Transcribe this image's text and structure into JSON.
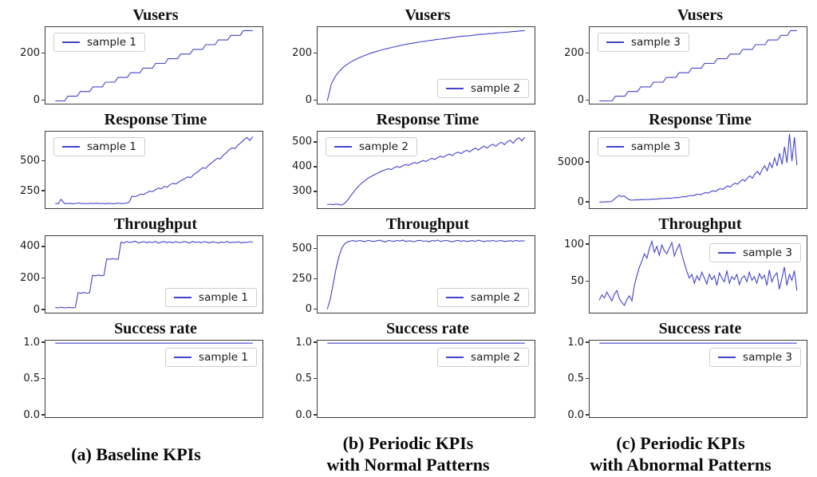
{
  "figure": {
    "line_color": "#4343cd",
    "axis_color": "#3c3c3c",
    "captions": [
      {
        "line1": "(a) Baseline KPIs",
        "line2": ""
      },
      {
        "line1": "(b) Periodic KPIs",
        "line2": "with Normal Patterns"
      },
      {
        "line1": "(c) Periodic KPIs",
        "line2": "with Abnormal Patterns"
      }
    ]
  },
  "chart_data": [
    {
      "type": "line",
      "title": "Vusers",
      "xlabel": "",
      "ylabel": "",
      "legend": {
        "position": "upper-left"
      },
      "yticks": [
        {
          "label": "0",
          "value": 0
        },
        {
          "label": "200",
          "value": 200
        }
      ],
      "ylim": [
        -12,
        315
      ],
      "series": [
        {
          "name": "sample 1",
          "values": [
            0,
            0,
            0,
            0,
            20,
            20,
            20,
            20,
            40,
            40,
            40,
            40,
            60,
            60,
            60,
            60,
            80,
            80,
            80,
            80,
            100,
            100,
            100,
            100,
            120,
            120,
            120,
            120,
            140,
            140,
            140,
            140,
            160,
            160,
            160,
            160,
            180,
            180,
            180,
            180,
            200,
            200,
            200,
            200,
            220,
            220,
            220,
            220,
            240,
            240,
            240,
            240,
            260,
            260,
            260,
            260,
            280,
            280,
            280,
            280,
            300,
            300,
            300,
            300
          ]
        }
      ]
    },
    {
      "type": "line",
      "title": "Vusers",
      "xlabel": "",
      "ylabel": "",
      "legend": {
        "position": "lower-right"
      },
      "yticks": [
        {
          "label": "0",
          "value": 0
        },
        {
          "label": "200",
          "value": 200
        }
      ],
      "ylim": [
        -12,
        315
      ],
      "series": [
        {
          "name": "sample 2",
          "values": [
            0,
            72,
            105,
            127,
            144,
            157,
            168,
            177,
            185,
            192,
            199,
            205,
            210,
            215,
            220,
            224,
            228,
            232,
            236,
            240,
            243,
            246,
            249,
            252,
            254,
            257,
            259,
            262,
            264,
            266,
            268,
            271,
            273,
            275,
            277,
            278,
            280,
            282,
            284,
            285,
            287,
            288,
            290,
            291,
            293,
            294,
            296,
            297,
            299,
            300
          ]
        }
      ]
    },
    {
      "type": "line",
      "title": "Vusers",
      "xlabel": "",
      "ylabel": "",
      "legend": {
        "position": "upper-left"
      },
      "yticks": [
        {
          "label": "0",
          "value": 0
        },
        {
          "label": "200",
          "value": 200
        }
      ],
      "ylim": [
        -12,
        315
      ],
      "series": [
        {
          "name": "sample 3",
          "values": [
            0,
            0,
            0,
            0,
            0,
            20,
            20,
            20,
            20,
            40,
            40,
            40,
            40,
            60,
            60,
            60,
            60,
            80,
            80,
            80,
            80,
            100,
            100,
            100,
            100,
            120,
            120,
            120,
            120,
            140,
            140,
            140,
            140,
            160,
            160,
            160,
            160,
            180,
            180,
            180,
            180,
            200,
            200,
            200,
            200,
            220,
            220,
            220,
            220,
            240,
            240,
            240,
            240,
            260,
            260,
            260,
            260,
            280,
            280,
            280,
            300,
            300,
            300
          ]
        }
      ]
    },
    {
      "type": "line",
      "title": "Response Time",
      "xlabel": "",
      "ylabel": "",
      "legend": {
        "position": "upper-left"
      },
      "yticks": [
        {
          "label": "250",
          "value": 250
        },
        {
          "label": "500",
          "value": 500
        }
      ],
      "ylim": [
        110,
        750
      ],
      "series": [
        {
          "name": "sample 1",
          "values": [
            150,
            147,
            185,
            152,
            148,
            151,
            146,
            150,
            153,
            148,
            150,
            147,
            151,
            149,
            152,
            148,
            150,
            146,
            151,
            149,
            147,
            152,
            150,
            148,
            153,
            158,
            210,
            206,
            214,
            228,
            224,
            238,
            252,
            248,
            264,
            278,
            272,
            292,
            286,
            308,
            318,
            312,
            332,
            344,
            358,
            372,
            366,
            392,
            408,
            428,
            448,
            442,
            468,
            488,
            508,
            528,
            522,
            552,
            572,
            598,
            614,
            608,
            638,
            658,
            682,
            702,
            676,
            708
          ]
        }
      ]
    },
    {
      "type": "line",
      "title": "Response Time",
      "xlabel": "",
      "ylabel": "",
      "legend": {
        "position": "upper-left"
      },
      "yticks": [
        {
          "label": "300",
          "value": 300
        },
        {
          "label": "400",
          "value": 400
        },
        {
          "label": "500",
          "value": 500
        }
      ],
      "ylim": [
        235,
        545
      ],
      "series": [
        {
          "name": "sample 2",
          "values": [
            250,
            251,
            249,
            252,
            250,
            248,
            255,
            268,
            284,
            300,
            314,
            327,
            338,
            347,
            356,
            363,
            369,
            375,
            381,
            386,
            390,
            395,
            391,
            399,
            404,
            400,
            407,
            412,
            408,
            415,
            420,
            416,
            423,
            428,
            424,
            431,
            437,
            432,
            440,
            446,
            441,
            449,
            454,
            448,
            457,
            462,
            456,
            464,
            470,
            463,
            472,
            478,
            470,
            480,
            486,
            478,
            488,
            494,
            486,
            496,
            502,
            492,
            504,
            510,
            498,
            512,
            520,
            508,
            522
          ]
        }
      ]
    },
    {
      "type": "line",
      "title": "Response Time",
      "xlabel": "",
      "ylabel": "",
      "legend": {
        "position": "upper-left"
      },
      "yticks": [
        {
          "label": "0",
          "value": 0
        },
        {
          "label": "5000",
          "value": 5000
        }
      ],
      "ylim": [
        -700,
        8900
      ],
      "series": [
        {
          "name": "sample 3",
          "values": [
            60,
            90,
            70,
            120,
            100,
            160,
            420,
            680,
            900,
            750,
            850,
            600,
            380,
            300,
            330,
            360,
            340,
            380,
            360,
            400,
            380,
            420,
            440,
            410,
            470,
            520,
            500,
            540,
            560,
            530,
            600,
            640,
            610,
            700,
            760,
            720,
            840,
            900,
            860,
            980,
            1060,
            1000,
            1150,
            1250,
            1180,
            1350,
            1480,
            1400,
            1600,
            1750,
            1650,
            1900,
            2100,
            1950,
            2250,
            2450,
            2300,
            2650,
            2900,
            2700,
            3100,
            3350,
            3050,
            3600,
            3900,
            3500,
            4200,
            4600,
            4000,
            5000,
            4400,
            5600,
            4600,
            6200,
            4800,
            7000,
            5000,
            8600,
            5200,
            8200,
            4700
          ]
        }
      ]
    },
    {
      "type": "line",
      "title": "Throughput",
      "xlabel": "",
      "ylabel": "",
      "legend": {
        "position": "lower-right"
      },
      "yticks": [
        {
          "label": "0",
          "value": 0
        },
        {
          "label": "200",
          "value": 200
        },
        {
          "label": "400",
          "value": 400
        }
      ],
      "ylim": [
        -15,
        470
      ],
      "series": [
        {
          "name": "sample 1",
          "values": [
            18,
            15,
            20,
            16,
            17,
            19,
            16,
            18,
            112,
            108,
            113,
            109,
            111,
            222,
            218,
            224,
            219,
            221,
            326,
            322,
            328,
            323,
            325,
            432,
            426,
            436,
            429,
            433,
            438,
            427,
            431,
            435,
            428,
            433,
            429,
            437,
            425,
            431,
            436,
            428,
            434,
            427,
            435,
            430,
            429,
            436,
            431,
            426,
            437,
            430,
            433,
            428,
            435,
            431,
            427,
            434,
            430,
            426,
            433,
            429,
            436,
            428,
            432,
            430,
            434,
            427,
            431,
            429,
            435,
            430
          ]
        }
      ]
    },
    {
      "type": "line",
      "title": "Throughput",
      "xlabel": "",
      "ylabel": "",
      "legend": {
        "position": "lower-right"
      },
      "yticks": [
        {
          "label": "0",
          "value": 0
        },
        {
          "label": "250",
          "value": 250
        },
        {
          "label": "500",
          "value": 500
        }
      ],
      "ylim": [
        -25,
        610
      ],
      "series": [
        {
          "name": "sample 2",
          "values": [
            5,
            85,
            210,
            340,
            440,
            510,
            548,
            562,
            570,
            572,
            566,
            574,
            569,
            563,
            575,
            570,
            565,
            571,
            576,
            568,
            562,
            573,
            570,
            566,
            574,
            569,
            577,
            565,
            571,
            568,
            563,
            572,
            575,
            567,
            570,
            564,
            573,
            569,
            576,
            566,
            571,
            574,
            568,
            562,
            570,
            575,
            567,
            572,
            565,
            569,
            573,
            566,
            576,
            570,
            564,
            571,
            568,
            574,
            567,
            570,
            573,
            565,
            569,
            572,
            566,
            575,
            568,
            571,
            570
          ]
        }
      ]
    },
    {
      "type": "line",
      "title": "Throughput",
      "xlabel": "",
      "ylabel": "",
      "legend": {
        "position": "upper-right"
      },
      "yticks": [
        {
          "label": "50",
          "value": 50
        },
        {
          "label": "100",
          "value": 100
        }
      ],
      "ylim": [
        8,
        112
      ],
      "series": [
        {
          "name": "sample 3",
          "values": [
            25,
            32,
            28,
            36,
            30,
            24,
            33,
            38,
            27,
            22,
            18,
            26,
            31,
            24,
            45,
            58,
            70,
            78,
            88,
            82,
            95,
            105,
            90,
            98,
            86,
            100,
            92,
            88,
            96,
            103,
            85,
            94,
            101,
            87,
            75,
            64,
            55,
            60,
            48,
            58,
            52,
            63,
            55,
            47,
            60,
            53,
            58,
            45,
            62,
            55,
            50,
            65,
            48,
            57,
            53,
            60,
            46,
            55,
            58,
            50,
            63,
            52,
            57,
            48,
            61,
            54,
            59,
            45,
            66,
            50,
            58,
            62,
            40,
            55,
            70,
            45,
            60,
            52,
            65,
            38
          ]
        }
      ]
    },
    {
      "type": "line",
      "title": "Success rate",
      "xlabel": "",
      "ylabel": "",
      "legend": {
        "position": "upper-right"
      },
      "yticks": [
        {
          "label": "0.0",
          "value": 0.0
        },
        {
          "label": "0.5",
          "value": 0.5
        },
        {
          "label": "1.0",
          "value": 1.0
        }
      ],
      "ylim": [
        -0.02,
        1.035
      ],
      "series": [
        {
          "name": "sample 1",
          "values": [
            1,
            1,
            1,
            1,
            1,
            1,
            1,
            1,
            1,
            1
          ]
        }
      ]
    },
    {
      "type": "line",
      "title": "Success rate",
      "xlabel": "",
      "ylabel": "",
      "legend": {
        "position": "upper-right"
      },
      "yticks": [
        {
          "label": "0.0",
          "value": 0.0
        },
        {
          "label": "0.5",
          "value": 0.5
        },
        {
          "label": "1.0",
          "value": 1.0
        }
      ],
      "ylim": [
        -0.02,
        1.035
      ],
      "series": [
        {
          "name": "sample 2",
          "values": [
            1,
            1,
            1,
            1,
            1,
            1,
            1,
            1,
            1,
            1
          ]
        }
      ]
    },
    {
      "type": "line",
      "title": "Success rate",
      "xlabel": "",
      "ylabel": "",
      "legend": {
        "position": "upper-right"
      },
      "yticks": [
        {
          "label": "0.0",
          "value": 0.0
        },
        {
          "label": "0.5",
          "value": 0.5
        },
        {
          "label": "1.0",
          "value": 1.0
        }
      ],
      "ylim": [
        -0.02,
        1.035
      ],
      "series": [
        {
          "name": "sample 3",
          "values": [
            1,
            1,
            1,
            1,
            1,
            1,
            1,
            1,
            1,
            1
          ]
        }
      ]
    }
  ]
}
